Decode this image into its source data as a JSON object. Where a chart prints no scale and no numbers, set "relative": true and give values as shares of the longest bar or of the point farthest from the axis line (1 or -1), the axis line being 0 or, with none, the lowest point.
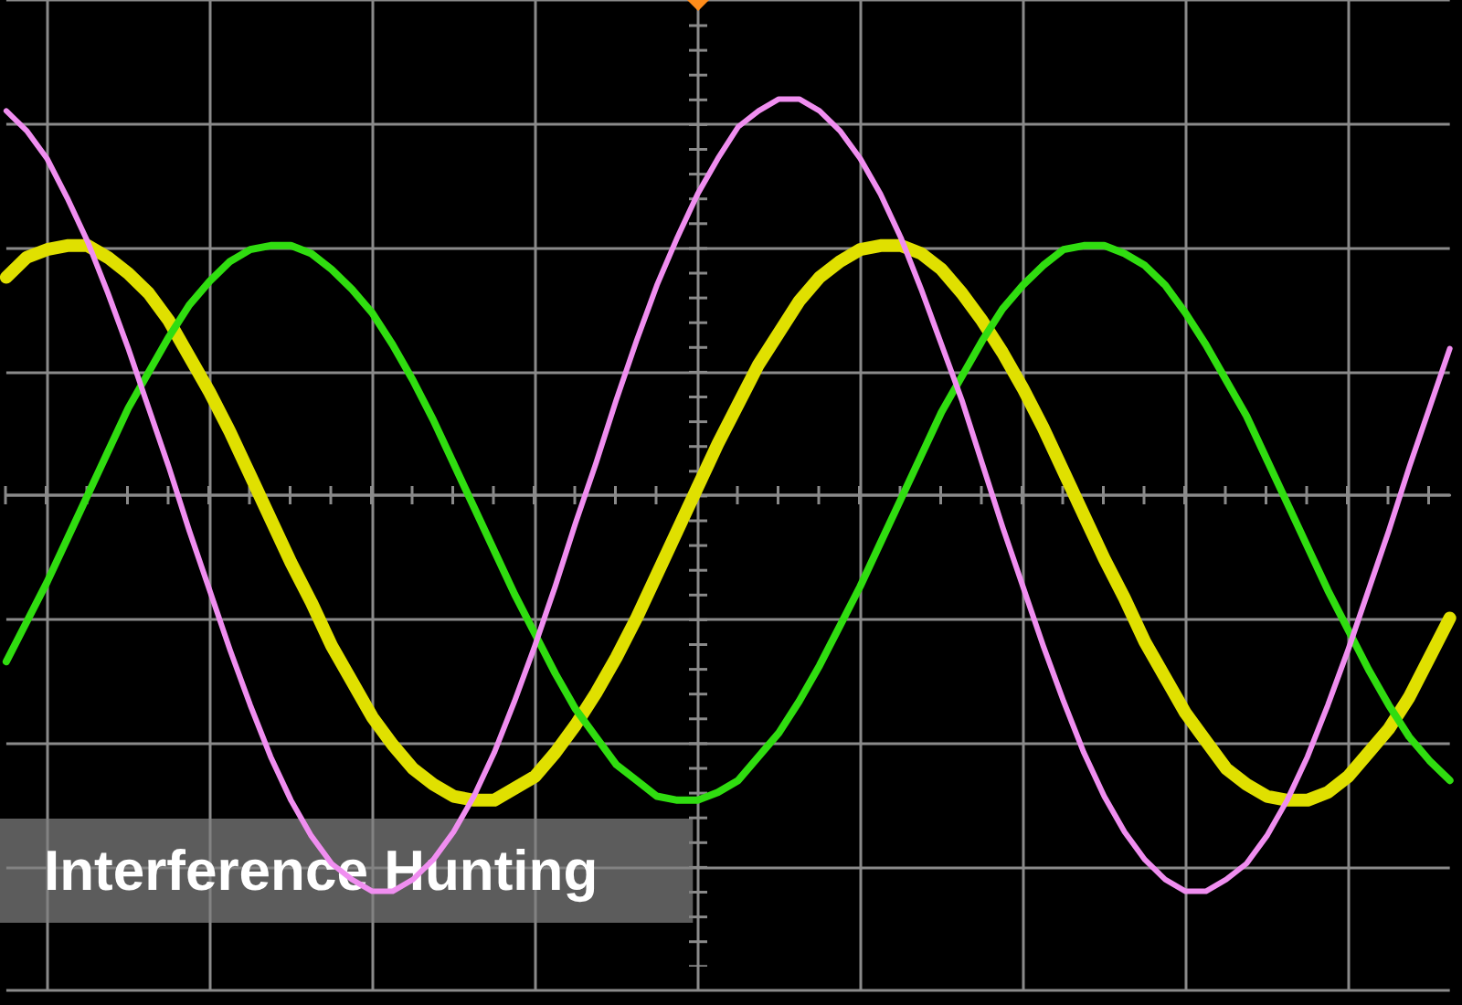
{
  "chart_data": {
    "type": "line",
    "title": "Interference Hunting",
    "relative": true,
    "grid": true,
    "categories": [
      null,
      null,
      null,
      null,
      null,
      null,
      null,
      null,
      null,
      null,
      null,
      null,
      null,
      null,
      null,
      null,
      null,
      null,
      null,
      null,
      null,
      null,
      null,
      null,
      null,
      null,
      null,
      null,
      null,
      null,
      null,
      null,
      null,
      null,
      null,
      null,
      null,
      null,
      null,
      null,
      null,
      null,
      null,
      null,
      null,
      null,
      null,
      null,
      null,
      null,
      null,
      null,
      null,
      null,
      null,
      null,
      null,
      null,
      null,
      null,
      null,
      null,
      null,
      null,
      null,
      null,
      null,
      null,
      null,
      null,
      null,
      null
    ],
    "series": [
      {
        "color": "#e0e000",
        "values": [
          0.55,
          0.6,
          0.62,
          0.63,
          0.63,
          0.6,
          0.56,
          0.51,
          0.44,
          0.35,
          0.26,
          0.16,
          0.05,
          -0.06,
          -0.17,
          -0.27,
          -0.38,
          -0.47,
          -0.56,
          -0.63,
          -0.69,
          -0.73,
          -0.76,
          -0.77,
          -0.77,
          -0.74,
          -0.71,
          -0.65,
          -0.58,
          -0.5,
          -0.41,
          -0.31,
          -0.2,
          -0.09,
          0.02,
          0.13,
          0.23,
          0.33,
          0.41,
          0.49,
          0.55,
          0.59,
          0.62,
          0.63,
          0.63,
          0.61,
          0.57,
          0.51,
          0.44,
          0.36,
          0.27,
          0.17,
          0.06,
          -0.05,
          -0.16,
          -0.26,
          -0.37,
          -0.46,
          -0.55,
          -0.62,
          -0.69,
          -0.73,
          -0.76,
          -0.77,
          -0.77,
          -0.75,
          -0.71,
          -0.65,
          -0.59,
          -0.51,
          -0.41,
          -0.31
        ]
      },
      {
        "color": "#30dd10",
        "values": [
          -0.42,
          -0.32,
          -0.22,
          -0.11,
          0.0,
          0.11,
          0.22,
          0.31,
          0.4,
          0.48,
          0.54,
          0.59,
          0.62,
          0.63,
          0.63,
          0.61,
          0.57,
          0.52,
          0.46,
          0.38,
          0.29,
          0.19,
          0.08,
          -0.03,
          -0.14,
          -0.25,
          -0.35,
          -0.45,
          -0.54,
          -0.61,
          -0.68,
          -0.72,
          -0.76,
          -0.77,
          -0.77,
          -0.75,
          -0.72,
          -0.66,
          -0.6,
          -0.52,
          -0.43,
          -0.33,
          -0.23,
          -0.12,
          -0.01,
          0.1,
          0.21,
          0.3,
          0.39,
          0.47,
          0.53,
          0.58,
          0.62,
          0.63,
          0.63,
          0.61,
          0.58,
          0.53,
          0.46,
          0.38,
          0.29,
          0.2,
          0.09,
          -0.02,
          -0.13,
          -0.24,
          -0.34,
          -0.44,
          -0.53,
          -0.61,
          -0.67,
          -0.72
        ]
      },
      {
        "color": "#f08ef0",
        "values": [
          0.97,
          0.92,
          0.85,
          0.75,
          0.64,
          0.51,
          0.37,
          0.22,
          0.07,
          -0.09,
          -0.24,
          -0.39,
          -0.53,
          -0.66,
          -0.77,
          -0.86,
          -0.93,
          -0.97,
          -1.0,
          -1.0,
          -0.97,
          -0.92,
          -0.85,
          -0.76,
          -0.65,
          -0.52,
          -0.38,
          -0.23,
          -0.07,
          0.08,
          0.24,
          0.39,
          0.53,
          0.65,
          0.76,
          0.85,
          0.93,
          0.97,
          1.0,
          1.0,
          0.97,
          0.92,
          0.85,
          0.76,
          0.65,
          0.52,
          0.38,
          0.24,
          0.08,
          -0.08,
          -0.23,
          -0.38,
          -0.52,
          -0.65,
          -0.76,
          -0.85,
          -0.92,
          -0.97,
          -1.0,
          -1.0,
          -0.97,
          -0.93,
          -0.86,
          -0.77,
          -0.66,
          -0.53,
          -0.39,
          -0.24,
          -0.09,
          0.07,
          0.22,
          0.37
        ]
      }
    ]
  }
}
